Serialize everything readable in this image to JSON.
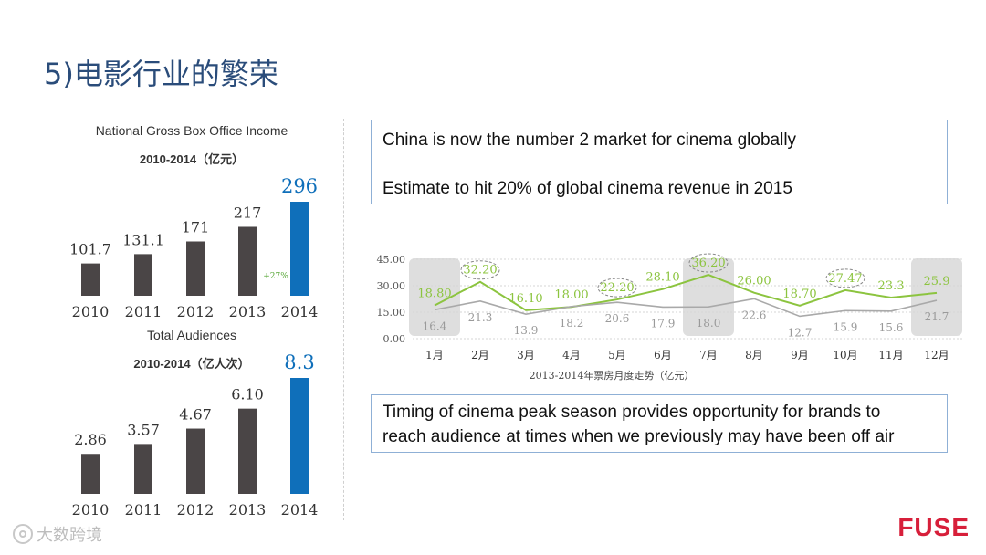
{
  "slide": {
    "title": "5)电影行业的繁荣",
    "brand": "FUSE",
    "watermark": "大数跨境"
  },
  "callouts": {
    "top_line1": "China is now the number 2 market for cinema globally",
    "top_line2": "Estimate to hit 20% of global cinema revenue in 2015",
    "bottom_line1": "Timing of cinema peak season provides opportunity for brands to",
    "bottom_line2": "reach audience at times when we previously may have been off air"
  },
  "chart_data": [
    {
      "type": "bar",
      "title": "National Gross Box Office Income",
      "subtitle": "2010-2014（亿元）",
      "categories": [
        "2010",
        "2011",
        "2012",
        "2013",
        "2014"
      ],
      "values": [
        101.7,
        131.1,
        171,
        217,
        296
      ],
      "value_labels": [
        "101.7",
        "131.1",
        "171",
        "217",
        "296"
      ],
      "annotation": "+27%",
      "colors": {
        "bar": "#4a4546",
        "highlight": "#0f6fba",
        "annotation": "#5aa83a"
      }
    },
    {
      "type": "bar",
      "title": "Total Audiences",
      "subtitle": "2010-2014（亿人次）",
      "categories": [
        "2010",
        "2011",
        "2012",
        "2013",
        "2014"
      ],
      "values": [
        2.86,
        3.57,
        4.67,
        6.1,
        8.3
      ],
      "value_labels": [
        "2.86",
        "3.57",
        "4.67",
        "6.10",
        "8.3"
      ],
      "colors": {
        "bar": "#4a4546",
        "highlight": "#0f6fba"
      }
    },
    {
      "type": "line",
      "xlabel": "2013-2014年票房月度走势（亿元）",
      "categories": [
        "1月",
        "2月",
        "3月",
        "4月",
        "5月",
        "6月",
        "7月",
        "8月",
        "9月",
        "10月",
        "11月",
        "12月"
      ],
      "ylim": [
        0,
        45
      ],
      "yticks": [
        "0.00",
        "15.00",
        "30.00",
        "45.00"
      ],
      "grid": true,
      "series": [
        {
          "values": [
            18.8,
            32.2,
            16.1,
            18.0,
            22.2,
            28.1,
            36.2,
            26.0,
            18.7,
            27.47,
            23.3,
            25.9
          ],
          "labels": [
            "18.80",
            "32.20",
            "16.10",
            "18.00",
            "22.20",
            "28.10",
            "36.20",
            "26.00",
            "18.70",
            "27.47",
            "23.3",
            "25.9"
          ],
          "color": "#8cc43f"
        },
        {
          "values": [
            16.4,
            21.3,
            13.9,
            18.2,
            20.6,
            17.9,
            18.0,
            22.6,
            12.7,
            15.9,
            15.6,
            21.7
          ],
          "labels": [
            "16.4",
            "21.3",
            "13.9",
            "18.2",
            "20.6",
            "17.9",
            "18.0",
            "22.6",
            "12.7",
            "15.9",
            "15.6",
            "21.7"
          ],
          "color": "#a9a9a9"
        }
      ],
      "highlight_months": [
        "1月",
        "7月",
        "12月"
      ],
      "circled_labels": [
        "32.20",
        "22.20",
        "36.20",
        "27.47"
      ],
      "colors": {
        "highlight": "#d8d8d8",
        "grid": "#d6d6d6",
        "axis_text": "#555555"
      }
    }
  ]
}
